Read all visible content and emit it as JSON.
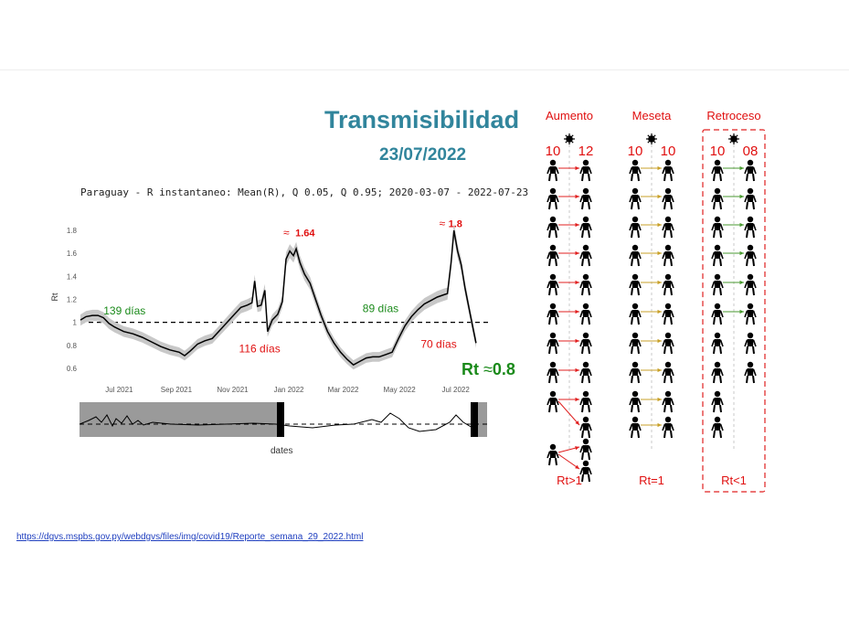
{
  "slide": {
    "title": "Transmisibilidad",
    "date": "23/07/2022",
    "source_link": "https://dgvs.mspbs.gov.py/webdgvs/files/img/covid19/Reporte_semana_29_2022.html"
  },
  "chart_data": {
    "type": "line",
    "title": "Paraguay - R instantaneo: Mean(R), Q 0.05, Q 0.95; 2020-03-07 - 2022-07-23",
    "xlabel": "dates",
    "ylabel": "Rt",
    "xlim": [
      "2021-05-20",
      "2022-08-05"
    ],
    "ylim": [
      0.52,
      1.92
    ],
    "x_ticks": [
      "Jul 2021",
      "Sep 2021",
      "Nov 2021",
      "Jan 2022",
      "Mar 2022",
      "May 2022",
      "Jul 2022"
    ],
    "x_tick_dates": [
      "2021-07-01",
      "2021-09-01",
      "2021-11-01",
      "2022-01-01",
      "2022-03-01",
      "2022-05-01",
      "2022-07-01"
    ],
    "y_ticks": [
      0.6,
      0.8,
      1,
      1.2,
      1.4,
      1.6,
      1.8
    ],
    "y_tick_labels": [
      "0.6",
      "0.8",
      "1",
      "1.2",
      "1.4",
      "1.6",
      "1.8"
    ],
    "reference_line": 1,
    "band_color": "#c8c8c8",
    "line_color": "#000000",
    "series": [
      {
        "values": [
          [
            "2021-05-20",
            1.02
          ],
          [
            "2021-05-26",
            1.05
          ],
          [
            "2021-06-02",
            1.06
          ],
          [
            "2021-06-08",
            1.06
          ],
          [
            "2021-06-14",
            1.04
          ],
          [
            "2021-06-20",
            0.99
          ],
          [
            "2021-06-26",
            0.96
          ],
          [
            "2021-07-06",
            0.92
          ],
          [
            "2021-07-16",
            0.9
          ],
          [
            "2021-07-26",
            0.87
          ],
          [
            "2021-08-05",
            0.83
          ],
          [
            "2021-08-15",
            0.79
          ],
          [
            "2021-08-25",
            0.76
          ],
          [
            "2021-09-04",
            0.74
          ],
          [
            "2021-09-10",
            0.71
          ],
          [
            "2021-09-16",
            0.75
          ],
          [
            "2021-09-24",
            0.81
          ],
          [
            "2021-10-02",
            0.84
          ],
          [
            "2021-10-10",
            0.86
          ],
          [
            "2021-10-18",
            0.93
          ],
          [
            "2021-10-26",
            1.0
          ],
          [
            "2021-11-03",
            1.07
          ],
          [
            "2021-11-10",
            1.13
          ],
          [
            "2021-11-17",
            1.15
          ],
          [
            "2021-11-22",
            1.17
          ],
          [
            "2021-11-25",
            1.36
          ],
          [
            "2021-11-28",
            1.14
          ],
          [
            "2021-12-02",
            1.15
          ],
          [
            "2021-12-06",
            1.28
          ],
          [
            "2021-12-09",
            0.92
          ],
          [
            "2021-12-14",
            1.02
          ],
          [
            "2021-12-20",
            1.07
          ],
          [
            "2021-12-25",
            1.18
          ],
          [
            "2021-12-29",
            1.55
          ],
          [
            "2022-01-02",
            1.62
          ],
          [
            "2022-01-06",
            1.58
          ],
          [
            "2022-01-09",
            1.64
          ],
          [
            "2022-01-13",
            1.52
          ],
          [
            "2022-01-18",
            1.42
          ],
          [
            "2022-01-24",
            1.34
          ],
          [
            "2022-01-30",
            1.2
          ],
          [
            "2022-02-05",
            1.06
          ],
          [
            "2022-02-12",
            0.92
          ],
          [
            "2022-02-19",
            0.82
          ],
          [
            "2022-02-26",
            0.74
          ],
          [
            "2022-03-05",
            0.68
          ],
          [
            "2022-03-12",
            0.63
          ],
          [
            "2022-03-19",
            0.66
          ],
          [
            "2022-03-26",
            0.69
          ],
          [
            "2022-04-02",
            0.7
          ],
          [
            "2022-04-09",
            0.7
          ],
          [
            "2022-04-16",
            0.72
          ],
          [
            "2022-04-23",
            0.74
          ],
          [
            "2022-04-30",
            0.86
          ],
          [
            "2022-05-07",
            0.97
          ],
          [
            "2022-05-14",
            1.05
          ],
          [
            "2022-05-21",
            1.11
          ],
          [
            "2022-05-28",
            1.16
          ],
          [
            "2022-06-04",
            1.19
          ],
          [
            "2022-06-11",
            1.22
          ],
          [
            "2022-06-18",
            1.24
          ],
          [
            "2022-06-22",
            1.25
          ],
          [
            "2022-06-26",
            1.52
          ],
          [
            "2022-06-29",
            1.8
          ],
          [
            "2022-07-03",
            1.62
          ],
          [
            "2022-07-07",
            1.5
          ],
          [
            "2022-07-11",
            1.3
          ],
          [
            "2022-07-15",
            1.14
          ],
          [
            "2022-07-19",
            0.98
          ],
          [
            "2022-07-23",
            0.82
          ]
        ]
      }
    ],
    "annotations": [
      {
        "text": "139 días",
        "color": "#1a8a1a",
        "x": "2021-06-14",
        "y": 1.07
      },
      {
        "text": "116 días",
        "color": "#e01010",
        "x": "2021-11-08",
        "y": 0.74
      },
      {
        "text": "≈",
        "color": "#e01010",
        "x": "2021-12-26",
        "y": 1.75
      },
      {
        "text": "1.64",
        "color": "#e01010",
        "x": "2022-01-08",
        "y": 1.75,
        "bold": true
      },
      {
        "text": "89 días",
        "color": "#1a8a1a",
        "x": "2022-03-22",
        "y": 1.09
      },
      {
        "text": "70 días",
        "color": "#e01010",
        "x": "2022-05-24",
        "y": 0.78
      },
      {
        "text": "≈",
        "color": "#e01010",
        "x": "2022-06-13",
        "y": 1.83
      },
      {
        "text": "1.8",
        "color": "#e01010",
        "x": "2022-06-23",
        "y": 1.83,
        "bold": true
      }
    ],
    "rt_label": {
      "text": "Rt",
      "approx": "≈",
      "value": "0.8"
    }
  },
  "schema": {
    "columns": [
      {
        "title": "Aumento",
        "left": "10",
        "right": "12",
        "footer": "Rt>1",
        "arrow_color": "#e02020",
        "dashed_box": false
      },
      {
        "title": "Meseta",
        "left": "10",
        "right": "10",
        "footer": "Rt=1",
        "arrow_color": "#c8a028",
        "dashed_box": false
      },
      {
        "title": "Retroceso",
        "left": "10",
        "right": "08",
        "footer": "Rt<1",
        "arrow_color": "#4a9a30",
        "dashed_box": true
      }
    ],
    "title_color": "#e01010",
    "icons": [
      "person-icon",
      "virus-icon"
    ]
  }
}
